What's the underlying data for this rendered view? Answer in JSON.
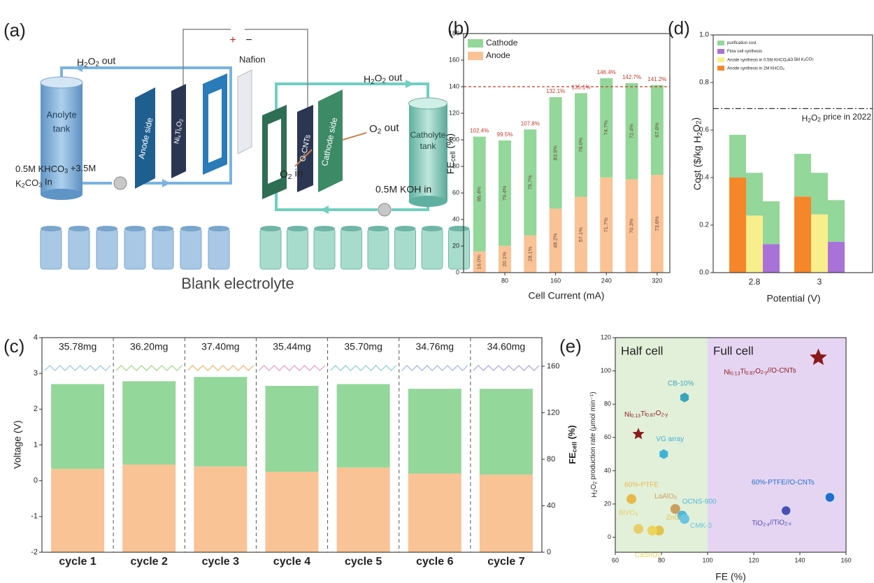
{
  "diagram": {
    "label": "(a)",
    "plus": "+",
    "minus": "−",
    "h2o2_out_left": [
      "H",
      "2",
      "O",
      "2",
      " out"
    ],
    "h2o2_out_right": [
      "H",
      "2",
      "O",
      "2",
      " out"
    ],
    "anolyte_tank": [
      "Anolyte",
      "tank"
    ],
    "anolyte_feed": [
      [
        "0.5M KHCO",
        "3",
        " +3.5M"
      ],
      [
        "K",
        "2",
        "CO",
        "3",
        " In"
      ]
    ],
    "anode_side": "Anode side",
    "anode_material": [
      "Ni",
      "x",
      "Ti",
      "x",
      "O",
      "2"
    ],
    "nafion": "Nafion",
    "o_cnts": "O-CNTs",
    "cathode_side": "Cathode side",
    "o2_out": [
      "O",
      "2",
      " out"
    ],
    "o2_in": [
      "O",
      "2",
      " in"
    ],
    "catholyte_tank": [
      "Catholyte",
      "tank"
    ],
    "catholyte_feed": "0.5M KOH in",
    "blank": "Blank electrolyte"
  },
  "chart_data": [
    {
      "type": "bar",
      "label": "(b)",
      "stacked": true,
      "xlabel": "Cell Current (mA)",
      "ylabel": [
        "FE",
        "cell",
        " (%)"
      ],
      "x": [
        40,
        80,
        120,
        160,
        200,
        240,
        280,
        320
      ],
      "xlim": [
        15,
        340
      ],
      "xticks": [
        80,
        160,
        240,
        320
      ],
      "ylim": [
        0,
        180
      ],
      "yticks": [
        0,
        20,
        40,
        60,
        80,
        100,
        120,
        140,
        160,
        180
      ],
      "legend": "upper left",
      "series": [
        {
          "name": "Anode",
          "color": "#f9c396",
          "values": [
            16.0,
            20.1,
            28.1,
            48.2,
            57.1,
            71.7,
            70.3,
            73.6
          ],
          "value_labels": [
            "16.0%",
            "20.1%",
            "28.1%",
            "48.2%",
            "57.1%",
            "71.7%",
            "70.3%",
            "73.6%"
          ]
        },
        {
          "name": "Cathode",
          "color": "#93d79a",
          "values": [
            86.4,
            79.4,
            79.7,
            83.9,
            78.0,
            74.7,
            72.4,
            67.6
          ],
          "value_labels": [
            "86.4%",
            "79.4%",
            "79.7%",
            "83.9%",
            "78.0%",
            "74.7%",
            "72.4%",
            "67.6%"
          ]
        }
      ],
      "totals": [
        102.4,
        99.5,
        107.8,
        132.1,
        135.1,
        146.4,
        142.7,
        141.2
      ],
      "total_labels": [
        "102.4%",
        "99.5%",
        "107.8%",
        "132.1%",
        "135.1%",
        "146.4%",
        "142.7%",
        "141.2%"
      ],
      "reference_line": {
        "value": 140,
        "color": "#c0392b"
      }
    },
    {
      "type": "bar",
      "label": "(d)",
      "stacked": true,
      "xlabel": "Potential (V)",
      "ylabel": [
        "Cost ($/kg H",
        "2",
        "O",
        "2",
        ")"
      ],
      "categories": [
        null,
        "2.8",
        null,
        null,
        "3",
        null
      ],
      "ylim": [
        0,
        1.0
      ],
      "yticks": [
        {
          "value": 0,
          "label": "0.0"
        },
        0.2,
        0.4,
        0.6,
        0.8,
        {
          "value": 1.0,
          "label": "1.0"
        }
      ],
      "legend": "upper left",
      "series": [
        {
          "name": [
            "Anode synthesis in 2M KHCO",
            "3"
          ],
          "color": "#f5862a",
          "values": [
            0.4,
            null,
            null,
            0.32,
            null,
            null
          ]
        },
        {
          "name": [
            "Anode synthesis in 0.5M KHCO",
            "3",
            "&3.5M K",
            "2",
            "CO",
            "3"
          ],
          "color": "#f9ee8c",
          "values": [
            null,
            0.24,
            null,
            null,
            0.245,
            null
          ]
        },
        {
          "name": "Flow cell synthesis",
          "color": "#a872d8",
          "values": [
            null,
            null,
            0.12,
            null,
            null,
            0.13
          ]
        },
        {
          "name": "purification cost",
          "color": "#93d79a",
          "values": [
            0.18,
            0.18,
            0.18,
            0.18,
            0.175,
            0.175
          ]
        }
      ],
      "reference_line": {
        "value": 0.69,
        "color": "#333333",
        "label": [
          "H",
          "2",
          "O",
          "2",
          " price in 2022"
        ]
      }
    },
    {
      "type": "bar",
      "label": "(c)",
      "stacked": true,
      "ylabel": "Voltage (V)",
      "y2label": [
        "FE",
        "cell",
        " (%)"
      ],
      "categories": [
        "cycle 1",
        "cycle 2",
        "cycle 3",
        "cycle 4",
        "cycle 5",
        "cycle 6",
        "cycle 7"
      ],
      "ylim": [
        -2,
        4
      ],
      "yticks": [
        -2,
        -1,
        0,
        1,
        2,
        3,
        4
      ],
      "y2lim": [
        0,
        184.6
      ],
      "y2ticks": [
        0,
        40,
        80,
        120,
        160
      ],
      "annotations": [
        "35.78mg",
        "36.20mg",
        "37.40mg",
        "35.44mg",
        "35.70mg",
        "34.76mg",
        "34.60mg"
      ],
      "separators": true,
      "series": [
        {
          "axis": "y2",
          "color": "#f9c396",
          "values": [
            71.7,
            75.4,
            73.8,
            69.2,
            72.9,
            67.7,
            66.8
          ]
        },
        {
          "axis": "y2",
          "color": "#93d79a",
          "values": [
            72.9,
            71.7,
            77.0,
            73.9,
            71.7,
            72.9,
            73.8
          ]
        }
      ],
      "lines": [
        {
          "color": "#9ccbe8",
          "values": [
            3.08,
            3.22,
            3.08,
            3.22,
            3.08,
            3.22,
            3.08,
            3.22,
            3.08,
            3.22,
            3.08,
            3.22,
            3.08,
            3.22
          ]
        },
        {
          "color": "#a7d98f",
          "values": [
            3.08,
            3.22,
            3.08,
            3.22,
            3.08,
            3.22,
            3.08,
            3.22,
            3.08,
            3.22,
            3.08,
            3.22,
            3.08,
            3.22
          ]
        },
        {
          "color": "#f5b971",
          "values": [
            3.08,
            3.22,
            3.08,
            3.22,
            3.08,
            3.22,
            3.08,
            3.22,
            3.08,
            3.22,
            3.08,
            3.22,
            3.08,
            3.22
          ]
        },
        {
          "color": "#e9a3c9",
          "values": [
            3.08,
            3.22,
            3.08,
            3.22,
            3.08,
            3.22,
            3.08,
            3.22,
            3.08,
            3.22,
            3.08,
            3.22,
            3.08,
            3.22
          ]
        },
        {
          "color": "#8fd3d0",
          "values": [
            3.08,
            3.22,
            3.08,
            3.22,
            3.08,
            3.22,
            3.08,
            3.22,
            3.08,
            3.22,
            3.08,
            3.22,
            3.08,
            3.22
          ]
        },
        {
          "color": "#a6b8e8",
          "values": [
            3.08,
            3.22,
            3.08,
            3.22,
            3.08,
            3.22,
            3.08,
            3.22,
            3.08,
            3.22,
            3.08,
            3.22,
            3.08,
            3.22
          ]
        },
        {
          "color": "#b6a8e0",
          "values": [
            3.08,
            3.22,
            3.08,
            3.22,
            3.08,
            3.22,
            3.08,
            3.22,
            3.08,
            3.22,
            3.08,
            3.22,
            3.08,
            3.22
          ]
        }
      ]
    },
    {
      "type": "scatter",
      "label": "(e)",
      "xlabel": "FE (%)",
      "ylabel": [
        "H",
        "2",
        "O",
        "2",
        " production rate (μmol min⁻¹)"
      ],
      "xlim": [
        60,
        160
      ],
      "xticks": [
        60,
        80,
        100,
        120,
        140,
        160
      ],
      "ylim": [
        -9,
        120
      ],
      "yticks": [
        0,
        20,
        40,
        60,
        80,
        100,
        120
      ],
      "regions": [
        {
          "label": "Half cell",
          "range": [
            60,
            100
          ],
          "color": "#e2f0da"
        },
        {
          "label": "Full cell",
          "range": [
            100,
            160
          ],
          "color": "#e6d5f2"
        }
      ],
      "points": [
        {
          "label": [
            "Ni",
            "0.13",
            "Ti",
            "0.87",
            "O",
            "2-y",
            "//O-CNTs"
          ],
          "x": 148,
          "y": 108,
          "marker": "star",
          "color": "#8b1a1a"
        },
        {
          "label": [
            "Ni",
            "0.13",
            "Ti",
            "0.87",
            "O",
            "2-y"
          ],
          "x": 70,
          "y": 62,
          "marker": "star",
          "color": "#8b1a1a"
        },
        {
          "label": "CB-10%",
          "x": 90,
          "y": 84,
          "marker": "hexagon",
          "color": "#3aa6b9"
        },
        {
          "label": "VG array",
          "x": 81,
          "y": 50,
          "marker": "hexagon",
          "color": "#3fb3d6"
        },
        {
          "label": "60%-PTFE",
          "x": 67,
          "y": 23,
          "marker": "circle",
          "color": "#e8b84a"
        },
        {
          "label": [
            "LaAlO",
            "3"
          ],
          "x": 86,
          "y": 17,
          "marker": "circle",
          "color": "#c9a060"
        },
        {
          "label": "OCNS-900",
          "x": 89,
          "y": 13,
          "marker": "circle",
          "color": "#4fb8d8"
        },
        {
          "label": "CMK-3",
          "x": 90,
          "y": 11,
          "marker": "circle",
          "color": "#6ac6e0"
        },
        {
          "label": [
            "BiVO",
            "4"
          ],
          "x": 70,
          "y": 5,
          "marker": "circle",
          "color": "#e6cf6a"
        },
        {
          "label": "ZnO",
          "x": 79,
          "y": 4,
          "marker": "circle",
          "color": "#e3c24a"
        },
        {
          "label": [
            "CaSnO",
            "3"
          ],
          "x": 76,
          "y": 4,
          "marker": "circle",
          "color": "#ebd55a"
        },
        {
          "label": "60%-PTFE//O-CNTs",
          "x": 153,
          "y": 24,
          "marker": "sphere",
          "color": "#1f6fd0"
        },
        {
          "label": [
            "TiO",
            "2-x",
            "//TiO",
            "2-x"
          ],
          "x": 134,
          "y": 16,
          "marker": "sphere",
          "color": "#4b4fb5"
        }
      ]
    }
  ]
}
